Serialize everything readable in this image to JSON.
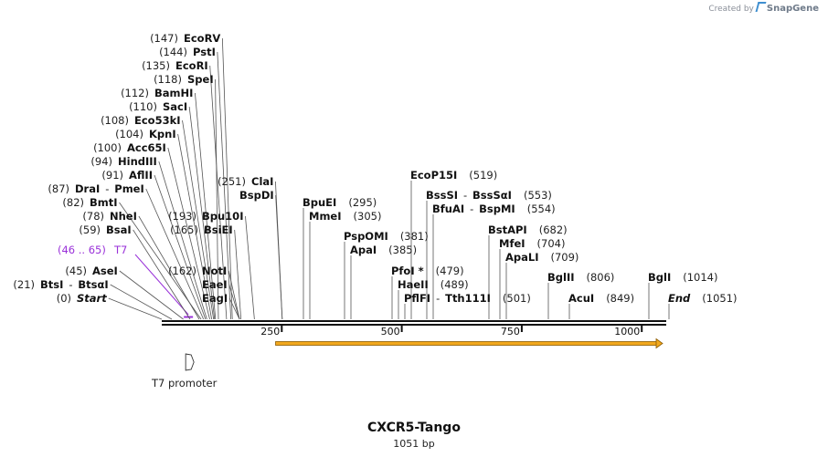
{
  "credit": {
    "prefix": "Created by",
    "brand": "SnapGene"
  },
  "map": {
    "name": "CXCR5-Tango",
    "length_label": "1051 bp",
    "length": 1051
  },
  "ruler": [
    {
      "value": 250,
      "label": "250"
    },
    {
      "value": 500,
      "label": "500"
    },
    {
      "value": 750,
      "label": "750"
    },
    {
      "value": 1000,
      "label": "1000"
    }
  ],
  "features": {
    "t7_site": {
      "name": "T7",
      "range_label": "(46 .. 65)",
      "start": 46,
      "end": 65,
      "color": "#9a32d9"
    },
    "t7_promoter": {
      "name": "T7 promoter",
      "position": 46
    },
    "orf": {
      "start": 220,
      "end": 1051,
      "color": "#f2a81d"
    }
  },
  "sites": [
    {
      "name": "EcoRV",
      "pos_label": "(147)",
      "pos": 147
    },
    {
      "name": "PstI",
      "pos_label": "(144)",
      "pos": 144
    },
    {
      "name": "EcoRI",
      "pos_label": "(135)",
      "pos": 135
    },
    {
      "name": "SpeI",
      "pos_label": "(118)",
      "pos": 118
    },
    {
      "name": "BamHI",
      "pos_label": "(112)",
      "pos": 112
    },
    {
      "name": "SacI",
      "pos_label": "(110)",
      "pos": 110
    },
    {
      "name": "Eco53kI",
      "pos_label": "(108)",
      "pos": 108
    },
    {
      "name": "KpnI",
      "pos_label": "(104)",
      "pos": 104
    },
    {
      "name": "Acc65I",
      "pos_label": "(100)",
      "pos": 100
    },
    {
      "name": "HindIII",
      "pos_label": "(94)",
      "pos": 94
    },
    {
      "name": "AflII",
      "pos_label": "(91)",
      "pos": 91
    },
    {
      "name": "DraI",
      "name2": "PmeI",
      "pos_label": "(87)",
      "pos": 87
    },
    {
      "name": "BmtI",
      "pos_label": "(82)",
      "pos": 82
    },
    {
      "name": "NheI",
      "pos_label": "(78)",
      "pos": 78
    },
    {
      "name": "BsaI",
      "pos_label": "(59)",
      "pos": 59
    },
    {
      "name": "AseI",
      "pos_label": "(45)",
      "pos": 45
    },
    {
      "name": "BtsI",
      "name2": "BtsαI",
      "pos_label": "(21)",
      "pos": 21
    },
    {
      "name": "Start",
      "pos_label": "(0)",
      "pos": 0,
      "italic": true
    },
    {
      "name": "ClaI",
      "pos_label": "(251)",
      "pos": 251
    },
    {
      "name": "BspDI",
      "pos_label": "",
      "pos": 251
    },
    {
      "name": "Bpu10I",
      "pos_label": "(193)",
      "pos": 193
    },
    {
      "name": "BsiEI",
      "pos_label": "(165)",
      "pos": 165
    },
    {
      "name": "NotI",
      "pos_label": "(162)",
      "pos": 162
    },
    {
      "name": "EaeI",
      "pos_label": "",
      "pos": 162
    },
    {
      "name": "EagI",
      "pos_label": "",
      "pos": 162
    },
    {
      "name": "BpuEI",
      "pos_label": "(295)",
      "pos": 295
    },
    {
      "name": "MmeI",
      "pos_label": "(305)",
      "pos": 305
    },
    {
      "name": "PspOMI",
      "pos_label": "(381)",
      "pos": 381
    },
    {
      "name": "ApaI",
      "pos_label": "(385)",
      "pos": 385
    },
    {
      "name": "EcoP15I",
      "pos_label": "(519)",
      "pos": 519
    },
    {
      "name": "BssSI",
      "name2": "BssSαI",
      "pos_label": "(553)",
      "pos": 553
    },
    {
      "name": "BfuAI",
      "name2": "BspMI",
      "pos_label": "(554)",
      "pos": 554
    },
    {
      "name": "PfoI *",
      "pos_label": "(479)",
      "pos": 479
    },
    {
      "name": "HaeII",
      "pos_label": "(489)",
      "pos": 489
    },
    {
      "name": "PflFI",
      "name2": "Tth111I",
      "pos_label": "(501)",
      "pos": 501
    },
    {
      "name": "BstAPI",
      "pos_label": "(682)",
      "pos": 682
    },
    {
      "name": "MfeI",
      "pos_label": "(704)",
      "pos": 704
    },
    {
      "name": "ApaLI",
      "pos_label": "(709)",
      "pos": 709
    },
    {
      "name": "BglII",
      "pos_label": "(806)",
      "pos": 806
    },
    {
      "name": "AcuI",
      "pos_label": "(849)",
      "pos": 849
    },
    {
      "name": "BglI",
      "pos_label": "(1014)",
      "pos": 1014
    },
    {
      "name": "End",
      "pos_label": "(1051)",
      "pos": 1051,
      "italic": true
    }
  ]
}
